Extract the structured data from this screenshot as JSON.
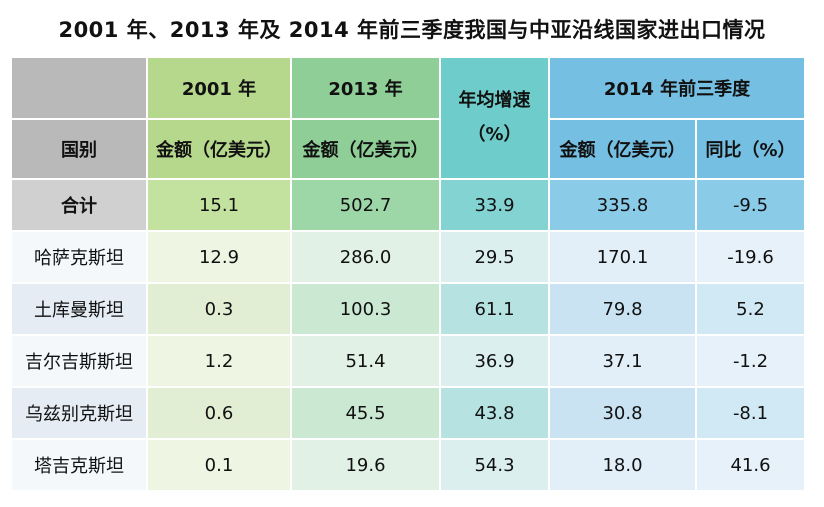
{
  "title": "2001 年、2013 年及 2014 年前三季度我国与中亚沿线国家进出口情况",
  "header": {
    "y2001": "2001 年",
    "y2013": "2013 年",
    "growth": "年均增速\n（%）",
    "y2014": "2014 年前三季度",
    "country": "国别",
    "amount_2001": "金额（亿美元）",
    "amount_2013": "金额（亿美元）",
    "amount_2014": "金额（亿美元）",
    "yoy": "同比（%）"
  },
  "chart_data": {
    "type": "table",
    "title": "2001 年、2013 年及 2014 年前三季度我国与中亚沿线国家进出口情况",
    "columns": [
      "国别",
      "2001 年 金额（亿美元）",
      "2013 年 金额（亿美元）",
      "年均增速（%）",
      "2014 年前三季度 金额（亿美元）",
      "2014 年前三季度 同比（%）"
    ],
    "total": {
      "country": "合计",
      "values": [
        "15.1",
        "502.7",
        "33.9",
        "335.8",
        "-9.5"
      ]
    },
    "rows": [
      {
        "country": "哈萨克斯坦",
        "values": [
          "12.9",
          "286.0",
          "29.5",
          "170.1",
          "-19.6"
        ]
      },
      {
        "country": "土库曼斯坦",
        "values": [
          "0.3",
          "100.3",
          "61.1",
          "79.8",
          "5.2"
        ]
      },
      {
        "country": "吉尔吉斯斯坦",
        "values": [
          "1.2",
          "51.4",
          "36.9",
          "37.1",
          "-1.2"
        ]
      },
      {
        "country": "乌兹别克斯坦",
        "values": [
          "0.6",
          "45.5",
          "43.8",
          "30.8",
          "-8.1"
        ]
      },
      {
        "country": "塔吉克斯坦",
        "values": [
          "0.1",
          "19.6",
          "54.3",
          "18.0",
          "41.6"
        ]
      }
    ]
  }
}
